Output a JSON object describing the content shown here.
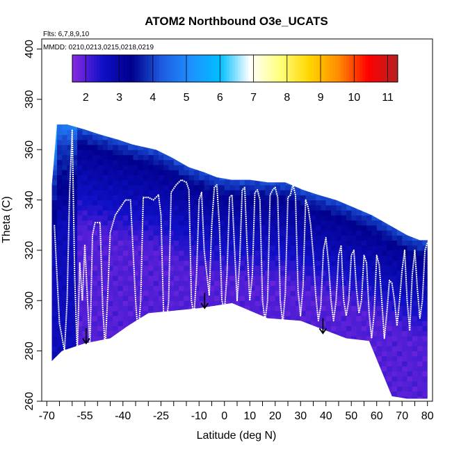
{
  "chart_data": {
    "type": "heatmap",
    "title": "ATOM2 Northbound O3e_UCATS",
    "subtitle_flights": "Flts: 6,7,8,9,10",
    "subtitle_dates": "MMDD: 0210,0213,0215,0218,0219",
    "xlabel": "Latitude (deg N)",
    "ylabel": "Theta (C)",
    "xlim": [
      -72,
      82
    ],
    "ylim": [
      260,
      404
    ],
    "x_ticks": [
      -70,
      -55,
      -40,
      -25,
      -10,
      0,
      10,
      20,
      30,
      40,
      50,
      60,
      70,
      80
    ],
    "x_tick_labels": [
      "-70",
      "-55",
      "-40",
      "-25",
      "-10",
      "0",
      "10",
      "20",
      "30",
      "40",
      "50",
      "60",
      "70",
      "80"
    ],
    "x_minor_ticks": [
      -65,
      -60,
      -50,
      -45,
      -35,
      -30,
      -20,
      -15,
      -5,
      5,
      15,
      25,
      35,
      45,
      55,
      65,
      75
    ],
    "y_ticks": [
      260,
      280,
      300,
      320,
      340,
      360,
      380,
      400
    ],
    "y_tick_labels": [
      "260",
      "280",
      "300",
      "320",
      "340",
      "360",
      "380",
      "400"
    ],
    "colorbar": {
      "range": [
        1.6,
        11.3
      ],
      "ticks": [
        2,
        3,
        4,
        5,
        6,
        7,
        8,
        9,
        10,
        11
      ],
      "tick_labels": [
        "2",
        "3",
        "4",
        "5",
        "6",
        "7",
        "8",
        "9",
        "10",
        "11"
      ],
      "colors": [
        "#8a2be2",
        "#1010c8",
        "#00008b",
        "#1e5ae0",
        "#1e90ff",
        "#00bfff",
        "#ffffff",
        "#ffff80",
        "#ffd700",
        "#ff8c00",
        "#ff0000",
        "#b22222"
      ]
    },
    "top_boundary": [
      [
        -68,
        346
      ],
      [
        -66,
        370
      ],
      [
        -62,
        370
      ],
      [
        -55,
        368
      ],
      [
        -49,
        366
      ],
      [
        -42,
        364
      ],
      [
        -36,
        362
      ],
      [
        -27,
        360
      ],
      [
        -21,
        357
      ],
      [
        -14,
        353
      ],
      [
        -8,
        351
      ],
      [
        -3,
        349
      ],
      [
        3,
        348
      ],
      [
        10,
        348
      ],
      [
        17,
        347
      ],
      [
        24,
        347
      ],
      [
        31,
        344
      ],
      [
        37,
        342
      ],
      [
        44,
        340
      ],
      [
        51,
        337
      ],
      [
        58,
        334
      ],
      [
        65,
        330
      ],
      [
        72,
        326
      ],
      [
        77,
        324
      ],
      [
        80,
        324
      ]
    ],
    "bottom_boundary": [
      [
        -68,
        276
      ],
      [
        -64,
        280
      ],
      [
        -55,
        283
      ],
      [
        -45,
        285
      ],
      [
        -38,
        290
      ],
      [
        -30,
        295
      ],
      [
        -10,
        297
      ],
      [
        3,
        299
      ],
      [
        17,
        293
      ],
      [
        30,
        292
      ],
      [
        48,
        285
      ],
      [
        57,
        284
      ],
      [
        66,
        262
      ],
      [
        72,
        261
      ],
      [
        80,
        261
      ]
    ],
    "flight_track": [
      [
        -67,
        330
      ],
      [
        -65,
        291
      ],
      [
        -63,
        280
      ],
      [
        -62,
        300
      ],
      [
        -61,
        343
      ],
      [
        -60,
        368
      ],
      [
        -59,
        310
      ],
      [
        -58,
        279
      ],
      [
        -57,
        315
      ],
      [
        -56,
        300
      ],
      [
        -55,
        322
      ],
      [
        -53,
        281
      ],
      [
        -52,
        326
      ],
      [
        -51,
        331
      ],
      [
        -49,
        331
      ],
      [
        -48,
        298
      ],
      [
        -47,
        281
      ],
      [
        -46,
        302
      ],
      [
        -45,
        327
      ],
      [
        -43,
        334
      ],
      [
        -41,
        337
      ],
      [
        -39,
        340
      ],
      [
        -37,
        340
      ],
      [
        -35,
        300
      ],
      [
        -34,
        286
      ],
      [
        -33,
        300
      ],
      [
        -32,
        341
      ],
      [
        -30,
        341
      ],
      [
        -28,
        340
      ],
      [
        -26,
        342
      ],
      [
        -25,
        334
      ],
      [
        -24,
        295
      ],
      [
        -23,
        289
      ],
      [
        -22,
        300
      ],
      [
        -21,
        343
      ],
      [
        -19,
        346
      ],
      [
        -17,
        348
      ],
      [
        -15,
        347
      ],
      [
        -14,
        344
      ],
      [
        -13,
        300
      ],
      [
        -12,
        294
      ],
      [
        -11,
        310
      ],
      [
        -10,
        340
      ],
      [
        -9,
        343
      ],
      [
        -8,
        320
      ],
      [
        -6,
        302
      ],
      [
        -5,
        330
      ],
      [
        -4,
        345
      ],
      [
        -3,
        346
      ],
      [
        -2,
        330
      ],
      [
        -1,
        300
      ],
      [
        0,
        296
      ],
      [
        1,
        310
      ],
      [
        2,
        341
      ],
      [
        3,
        342
      ],
      [
        4,
        320
      ],
      [
        5,
        300
      ],
      [
        6,
        315
      ],
      [
        7,
        344
      ],
      [
        8,
        345
      ],
      [
        9,
        320
      ],
      [
        10,
        300
      ],
      [
        11,
        310
      ],
      [
        12,
        343
      ],
      [
        13,
        344
      ],
      [
        14,
        340
      ],
      [
        15,
        300
      ],
      [
        16,
        292
      ],
      [
        17,
        300
      ],
      [
        18,
        342
      ],
      [
        19,
        344
      ],
      [
        20,
        345
      ],
      [
        21,
        341
      ],
      [
        22,
        300
      ],
      [
        23,
        291
      ],
      [
        24,
        303
      ],
      [
        25,
        341
      ],
      [
        26,
        342
      ],
      [
        27,
        346
      ],
      [
        28,
        342
      ],
      [
        29,
        304
      ],
      [
        30,
        294
      ],
      [
        31,
        306
      ],
      [
        32,
        340
      ],
      [
        33,
        337
      ],
      [
        34,
        330
      ],
      [
        35,
        318
      ],
      [
        36,
        302
      ],
      [
        37,
        292
      ],
      [
        38,
        298
      ],
      [
        39,
        320
      ],
      [
        40,
        325
      ],
      [
        41,
        315
      ],
      [
        42,
        300
      ],
      [
        43,
        292
      ],
      [
        44,
        300
      ],
      [
        45,
        318
      ],
      [
        46,
        322
      ],
      [
        47,
        300
      ],
      [
        48,
        294
      ],
      [
        49,
        300
      ],
      [
        50,
        318
      ],
      [
        51,
        320
      ],
      [
        52,
        305
      ],
      [
        53,
        295
      ],
      [
        54,
        300
      ],
      [
        55,
        318
      ],
      [
        56,
        315
      ],
      [
        57,
        295
      ],
      [
        58,
        285
      ],
      [
        59,
        295
      ],
      [
        60,
        318
      ],
      [
        61,
        314
      ],
      [
        62,
        300
      ],
      [
        63,
        285
      ],
      [
        64,
        295
      ],
      [
        65,
        308
      ],
      [
        66,
        307
      ],
      [
        67,
        300
      ],
      [
        68,
        290
      ],
      [
        69,
        300
      ],
      [
        70,
        312
      ],
      [
        71,
        320
      ],
      [
        72,
        300
      ],
      [
        73,
        288
      ],
      [
        74,
        310
      ],
      [
        75,
        320
      ],
      [
        76,
        305
      ],
      [
        77,
        293
      ],
      [
        78,
        300
      ],
      [
        79,
        320
      ],
      [
        80,
        323
      ]
    ],
    "arrows": [
      [
        -54.5,
        289,
        283
      ],
      [
        -7.8,
        303,
        297
      ],
      [
        38.8,
        293,
        287
      ]
    ]
  }
}
